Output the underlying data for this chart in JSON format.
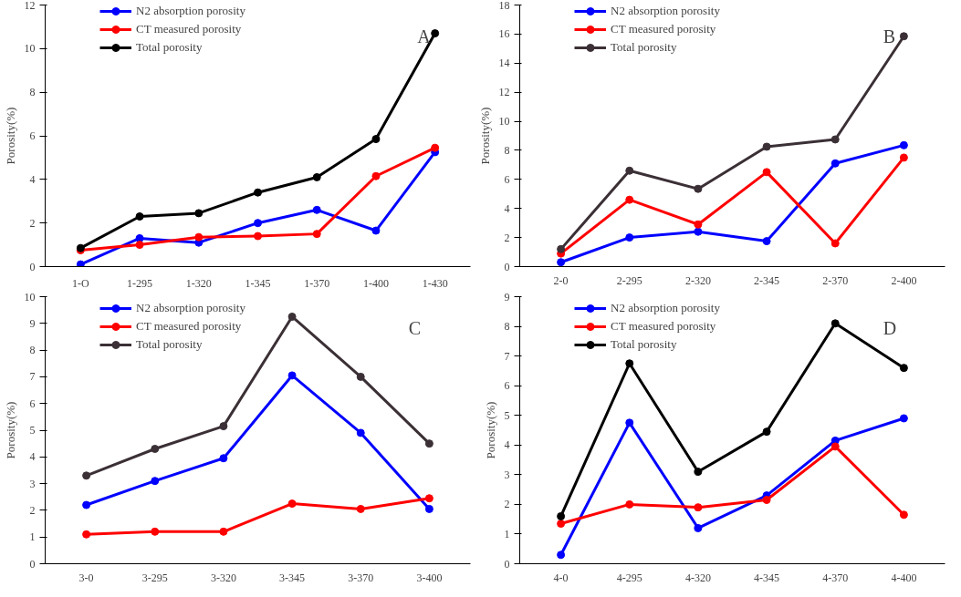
{
  "chart_data": [
    {
      "type": "line",
      "ylabel": "Porosity(%)",
      "categories": [
        "1-O",
        "1-295",
        "1-320",
        "1-345",
        "1-370",
        "1-400",
        "1-430"
      ],
      "ylim": [
        0,
        12
      ],
      "yticks": [
        0,
        2,
        4,
        6,
        8,
        10,
        12
      ],
      "grid": false,
      "legend": "top left",
      "marker": "circle",
      "annotations": [
        "A"
      ],
      "series": [
        {
          "name": "N2 absorption porosity",
          "color": "#0000ff",
          "values": [
            0.1,
            1.3,
            1.1,
            2.0,
            2.6,
            1.65,
            5.25
          ]
        },
        {
          "name": "CT measured porosity",
          "color": "#ff0000",
          "values": [
            0.75,
            1.0,
            1.35,
            1.4,
            1.5,
            4.15,
            5.45
          ]
        },
        {
          "name": "Total porosity",
          "color": "#000000",
          "values": [
            0.85,
            2.3,
            2.45,
            3.4,
            4.1,
            5.85,
            10.7
          ]
        }
      ]
    },
    {
      "type": "line",
      "ylabel": "Porosity(%)",
      "categories": [
        "2-0",
        "2-295",
        "2-320",
        "2-345",
        "2-370",
        "2-400"
      ],
      "ylim": [
        0,
        18
      ],
      "yticks": [
        0,
        2,
        4,
        6,
        8,
        10,
        12,
        14,
        16,
        18
      ],
      "grid": false,
      "legend": "top left",
      "marker": "circle",
      "annotations": [
        "B"
      ],
      "series": [
        {
          "name": "N2 absorption porosity",
          "color": "#0000ff",
          "values": [
            0.3,
            2.0,
            2.4,
            1.75,
            7.1,
            8.35
          ]
        },
        {
          "name": "CT measured porosity",
          "color": "#ff0000",
          "values": [
            0.9,
            4.6,
            2.9,
            6.5,
            1.6,
            7.5
          ]
        },
        {
          "name": "Total porosity",
          "color": "#3b3036",
          "values": [
            1.2,
            6.6,
            5.35,
            8.25,
            8.75,
            15.85
          ]
        }
      ]
    },
    {
      "type": "line",
      "ylabel": "Porosity(%)",
      "categories": [
        "3-0",
        "3-295",
        "3-320",
        "3-345",
        "3-370",
        "3-400"
      ],
      "ylim": [
        0,
        10
      ],
      "yticks": [
        0,
        1,
        2,
        3,
        4,
        5,
        6,
        7,
        8,
        9,
        10
      ],
      "grid": false,
      "legend": "top left",
      "marker": "circle",
      "annotations": [
        "C"
      ],
      "series": [
        {
          "name": "N2 absorption porosity",
          "color": "#0000ff",
          "values": [
            2.2,
            3.1,
            3.95,
            7.05,
            4.9,
            2.05
          ]
        },
        {
          "name": "CT measured porosity",
          "color": "#ff0000",
          "values": [
            1.1,
            1.2,
            1.2,
            2.25,
            2.05,
            2.45
          ]
        },
        {
          "name": "Total porosity",
          "color": "#3b3036",
          "values": [
            3.3,
            4.3,
            5.15,
            9.25,
            7.0,
            4.5
          ]
        }
      ]
    },
    {
      "type": "line",
      "ylabel": "Porosity(%)",
      "categories": [
        "4-0",
        "4-295",
        "4-320",
        "4-345",
        "4-370",
        "4-400"
      ],
      "ylim": [
        0,
        9
      ],
      "yticks": [
        0,
        1,
        2,
        3,
        4,
        5,
        6,
        7,
        8,
        9
      ],
      "grid": false,
      "legend": "top left",
      "marker": "circle",
      "annotations": [
        "D"
      ],
      "series": [
        {
          "name": "N2 absorption porosity",
          "color": "#0000ff",
          "values": [
            0.3,
            4.75,
            1.2,
            2.3,
            4.15,
            4.9
          ]
        },
        {
          "name": "CT measured porosity",
          "color": "#ff0000",
          "values": [
            1.35,
            2.0,
            1.9,
            2.15,
            3.95,
            1.65
          ]
        },
        {
          "name": "Total porosity",
          "color": "#000000",
          "values": [
            1.6,
            6.75,
            3.1,
            4.45,
            8.1,
            6.6
          ]
        }
      ]
    }
  ]
}
